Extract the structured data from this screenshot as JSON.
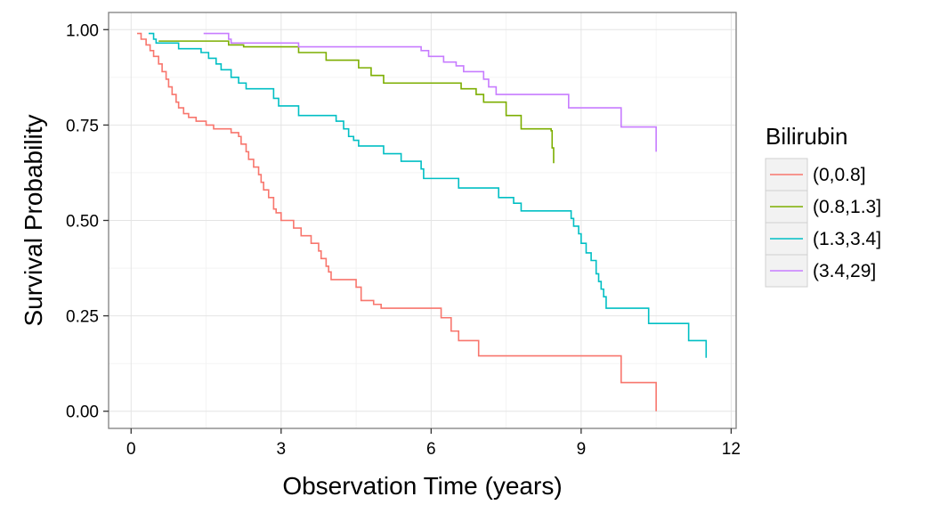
{
  "chart_data": {
    "type": "line",
    "step": true,
    "xlabel": "Observation Time (years)",
    "ylabel": "Survival Probability",
    "xlim": [
      -0.45,
      12.1
    ],
    "ylim": [
      -0.045,
      1.045
    ],
    "x_ticks": [
      0,
      3,
      6,
      9,
      12
    ],
    "x_tick_labels": [
      "0",
      "3",
      "6",
      "9",
      "12"
    ],
    "y_ticks": [
      0,
      0.25,
      0.5,
      0.75,
      1
    ],
    "y_tick_labels": [
      "0.00",
      "0.25",
      "0.50",
      "0.75",
      "1.00"
    ],
    "grid": true,
    "legend": {
      "title": "Bilirubin",
      "position": "right"
    },
    "series": [
      {
        "name": "(0,0.8]",
        "color": "#F8766D",
        "points": [
          [
            0.12,
            0.99
          ],
          [
            0.2,
            0.975
          ],
          [
            0.3,
            0.96
          ],
          [
            0.38,
            0.945
          ],
          [
            0.45,
            0.93
          ],
          [
            0.55,
            0.91
          ],
          [
            0.62,
            0.89
          ],
          [
            0.7,
            0.87
          ],
          [
            0.75,
            0.85
          ],
          [
            0.82,
            0.83
          ],
          [
            0.9,
            0.81
          ],
          [
            0.95,
            0.795
          ],
          [
            1.05,
            0.78
          ],
          [
            1.15,
            0.77
          ],
          [
            1.3,
            0.76
          ],
          [
            1.5,
            0.75
          ],
          [
            1.65,
            0.74
          ],
          [
            2.0,
            0.73
          ],
          [
            2.15,
            0.72
          ],
          [
            2.2,
            0.7
          ],
          [
            2.3,
            0.68
          ],
          [
            2.35,
            0.66
          ],
          [
            2.45,
            0.64
          ],
          [
            2.55,
            0.62
          ],
          [
            2.6,
            0.6
          ],
          [
            2.65,
            0.58
          ],
          [
            2.75,
            0.56
          ],
          [
            2.85,
            0.53
          ],
          [
            2.9,
            0.52
          ],
          [
            3.0,
            0.5
          ],
          [
            3.25,
            0.48
          ],
          [
            3.4,
            0.46
          ],
          [
            3.6,
            0.44
          ],
          [
            3.75,
            0.42
          ],
          [
            3.8,
            0.4
          ],
          [
            3.9,
            0.38
          ],
          [
            3.95,
            0.365
          ],
          [
            4.0,
            0.345
          ],
          [
            4.5,
            0.325
          ],
          [
            4.6,
            0.29
          ],
          [
            4.85,
            0.28
          ],
          [
            5.0,
            0.27
          ],
          [
            6.2,
            0.245
          ],
          [
            6.4,
            0.21
          ],
          [
            6.55,
            0.185
          ],
          [
            6.95,
            0.145
          ],
          [
            9.8,
            0.075
          ],
          [
            10.5,
            0.075
          ],
          [
            10.5,
            0.0
          ]
        ]
      },
      {
        "name": "(0.8,1.3]",
        "color": "#7CAE00",
        "points": [
          [
            0.55,
            0.97
          ],
          [
            1.95,
            0.96
          ],
          [
            2.25,
            0.955
          ],
          [
            3.35,
            0.94
          ],
          [
            3.9,
            0.92
          ],
          [
            4.55,
            0.9
          ],
          [
            4.8,
            0.88
          ],
          [
            5.05,
            0.86
          ],
          [
            6.6,
            0.845
          ],
          [
            6.9,
            0.83
          ],
          [
            7.05,
            0.81
          ],
          [
            7.5,
            0.775
          ],
          [
            7.8,
            0.74
          ],
          [
            8.4,
            0.735
          ],
          [
            8.42,
            0.69
          ],
          [
            8.45,
            0.65
          ]
        ]
      },
      {
        "name": "(1.3,3.4]",
        "color": "#00BFC4",
        "points": [
          [
            0.35,
            0.99
          ],
          [
            0.45,
            0.975
          ],
          [
            0.5,
            0.965
          ],
          [
            0.95,
            0.95
          ],
          [
            1.4,
            0.94
          ],
          [
            1.55,
            0.925
          ],
          [
            1.7,
            0.91
          ],
          [
            1.8,
            0.895
          ],
          [
            2.0,
            0.875
          ],
          [
            2.15,
            0.86
          ],
          [
            2.3,
            0.845
          ],
          [
            2.85,
            0.82
          ],
          [
            2.95,
            0.8
          ],
          [
            3.35,
            0.775
          ],
          [
            4.1,
            0.76
          ],
          [
            4.25,
            0.74
          ],
          [
            4.35,
            0.72
          ],
          [
            4.45,
            0.71
          ],
          [
            4.55,
            0.695
          ],
          [
            5.05,
            0.675
          ],
          [
            5.4,
            0.655
          ],
          [
            5.8,
            0.635
          ],
          [
            5.85,
            0.61
          ],
          [
            6.55,
            0.585
          ],
          [
            7.35,
            0.56
          ],
          [
            7.65,
            0.545
          ],
          [
            7.8,
            0.525
          ],
          [
            8.8,
            0.505
          ],
          [
            8.85,
            0.485
          ],
          [
            8.95,
            0.465
          ],
          [
            9.0,
            0.44
          ],
          [
            9.1,
            0.415
          ],
          [
            9.2,
            0.395
          ],
          [
            9.3,
            0.36
          ],
          [
            9.35,
            0.34
          ],
          [
            9.4,
            0.32
          ],
          [
            9.45,
            0.3
          ],
          [
            9.5,
            0.27
          ],
          [
            10.35,
            0.23
          ],
          [
            11.15,
            0.185
          ],
          [
            11.5,
            0.185
          ],
          [
            11.5,
            0.14
          ]
        ]
      },
      {
        "name": "(3.4,29]",
        "color": "#C77CFF",
        "points": [
          [
            1.45,
            0.99
          ],
          [
            1.95,
            0.975
          ],
          [
            2.0,
            0.965
          ],
          [
            3.35,
            0.955
          ],
          [
            5.8,
            0.945
          ],
          [
            5.95,
            0.93
          ],
          [
            6.25,
            0.915
          ],
          [
            6.5,
            0.905
          ],
          [
            6.65,
            0.89
          ],
          [
            7.05,
            0.87
          ],
          [
            7.15,
            0.85
          ],
          [
            7.3,
            0.83
          ],
          [
            8.75,
            0.795
          ],
          [
            9.8,
            0.745
          ],
          [
            10.5,
            0.745
          ],
          [
            10.5,
            0.68
          ]
        ]
      }
    ]
  }
}
